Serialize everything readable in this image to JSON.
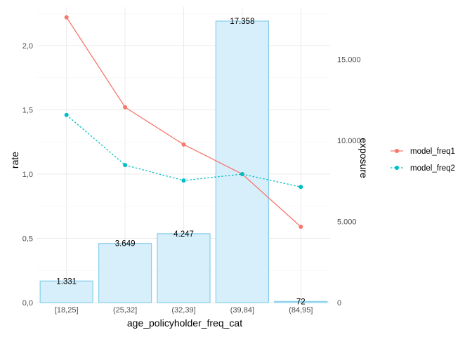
{
  "chart_data": {
    "type": "bar+line",
    "xlabel": "age_policyholder_freq_cat",
    "ylabel_left": "rate",
    "ylabel_right": "exposure",
    "categories": [
      "[18,25]",
      "(25,32]",
      "(32,39]",
      "(39,84]",
      "(84,95]"
    ],
    "bars": {
      "name": "exposure",
      "values": [
        1331,
        3649,
        4247,
        17358,
        72
      ],
      "labels": [
        "1.331",
        "3.649",
        "4.247",
        "17.358",
        "72"
      ],
      "fill": "#d6effb",
      "stroke": "#87ceeb"
    },
    "y_left": {
      "range": [
        0,
        2.3
      ],
      "ticks": [
        0,
        0.5,
        1.0,
        1.5,
        2.0
      ],
      "tick_labels": [
        "0,0",
        "0,5",
        "1,0",
        "1,5",
        "2,0"
      ]
    },
    "y_right": {
      "ticks": [
        0,
        5000,
        10000,
        15000
      ],
      "tick_labels": [
        "0",
        "5.000",
        "10.000",
        "15.000"
      ]
    },
    "series": [
      {
        "name": "model_freq1",
        "color": "#f8766d",
        "dash": "solid",
        "values": [
          2.22,
          1.52,
          1.23,
          1.0,
          0.59
        ]
      },
      {
        "name": "model_freq2",
        "color": "#00bfc4",
        "dash": "dotted",
        "values": [
          1.46,
          1.07,
          0.95,
          1.0,
          0.9
        ]
      }
    ],
    "legend_position": "right",
    "grid": true
  }
}
